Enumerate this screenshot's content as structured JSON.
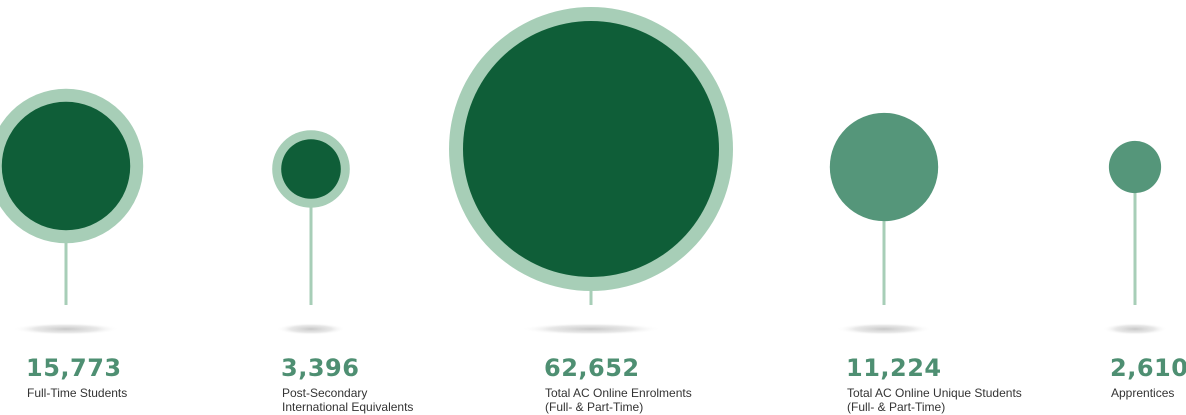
{
  "chart_data": {
    "type": "bubble",
    "colors": {
      "dark": "#0f5e38",
      "ring": "#a7ceb7",
      "medium": "#55967a",
      "stem": "#a7ceb7",
      "value_text": "#4e8f72",
      "label_text": "#333333"
    },
    "items": [
      {
        "value": 15773,
        "value_label": "15,773",
        "label_lines": [
          "Full-Time Students"
        ],
        "style": "dark-ringed"
      },
      {
        "value": 3396,
        "value_label": "3,396",
        "label_lines": [
          "Post-Secondary",
          "International Equivalents"
        ],
        "style": "dark-ringed"
      },
      {
        "value": 62652,
        "value_label": "62,652",
        "label_lines": [
          "Total AC Online Enrolments",
          "(Full- & Part-Time)"
        ],
        "style": "dark-ringed"
      },
      {
        "value": 11224,
        "value_label": "11,224",
        "label_lines": [
          "Total AC Online Unique Students",
          "(Full- & Part-Time)"
        ],
        "style": "medium-plain"
      },
      {
        "value": 2610,
        "value_label": "2,610",
        "label_lines": [
          "Apprentices"
        ],
        "style": "medium-plain"
      }
    ]
  }
}
